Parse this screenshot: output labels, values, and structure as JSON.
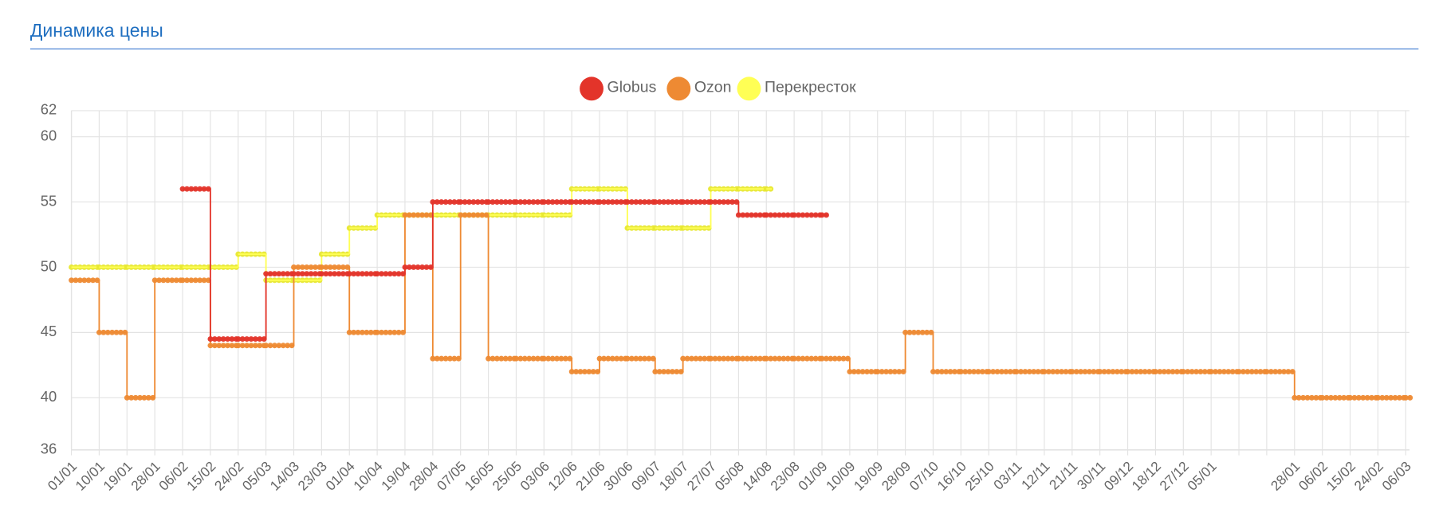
{
  "chart_data": {
    "type": "line",
    "step": "after",
    "title": "Динамика цены",
    "legend": "top",
    "grid": true,
    "categories": [
      "01/01",
      "10/01",
      "19/01",
      "28/01",
      "06/02",
      "15/02",
      "24/02",
      "05/03",
      "14/03",
      "23/03",
      "01/04",
      "10/04",
      "19/04",
      "28/04",
      "07/05",
      "16/05",
      "25/05",
      "03/06",
      "12/06",
      "21/06",
      "30/06",
      "09/07",
      "18/07",
      "27/07",
      "05/08",
      "14/08",
      "23/08",
      "01/09",
      "10/09",
      "19/09",
      "28/09",
      "07/10",
      "16/10",
      "25/10",
      "03/11",
      "12/11",
      "21/11",
      "30/11",
      "09/12",
      "18/12",
      "27/12",
      "05/01",
      null,
      null,
      "28/01",
      "06/02",
      "15/02",
      "24/02",
      "06/03"
    ],
    "ylim": [
      36,
      62
    ],
    "yticks": [
      36,
      40,
      45,
      50,
      55,
      60,
      62
    ],
    "series": [
      {
        "name": "Globus",
        "color": "#e3342a",
        "values": [
          null,
          null,
          null,
          null,
          56,
          44.5,
          44.5,
          49.5,
          49.5,
          49.5,
          49.5,
          49.5,
          50,
          55,
          55,
          55,
          55,
          55,
          55,
          55,
          55,
          55,
          55,
          55,
          54,
          54,
          54,
          54,
          null,
          null,
          null,
          null,
          null,
          null,
          null,
          null,
          null,
          null,
          null,
          null,
          null,
          null,
          null,
          null,
          null,
          null,
          null,
          null,
          null
        ]
      },
      {
        "name": "Ozon",
        "color": "#ee8a33",
        "values": [
          49,
          45,
          40,
          49,
          49,
          44,
          44,
          44,
          50,
          50,
          45,
          45,
          54,
          43,
          54,
          43,
          43,
          43,
          42,
          43,
          43,
          42,
          43,
          43,
          43,
          43,
          43,
          43,
          42,
          42,
          45,
          42,
          42,
          42,
          42,
          42,
          42,
          42,
          42,
          42,
          42,
          42,
          42,
          42,
          40,
          40,
          40,
          40,
          40
        ]
      },
      {
        "name": "Перекресток",
        "color": "#ffff55",
        "values": [
          50,
          50,
          50,
          50,
          50,
          50,
          51,
          49,
          49,
          51,
          53,
          54,
          54,
          54,
          54,
          54,
          54,
          54,
          56,
          56,
          53,
          53,
          53,
          56,
          56,
          56,
          null,
          null,
          null,
          null,
          null,
          null,
          null,
          null,
          null,
          null,
          null,
          null,
          null,
          null,
          null,
          null,
          null,
          null,
          null,
          null,
          null,
          null,
          null
        ]
      }
    ]
  }
}
